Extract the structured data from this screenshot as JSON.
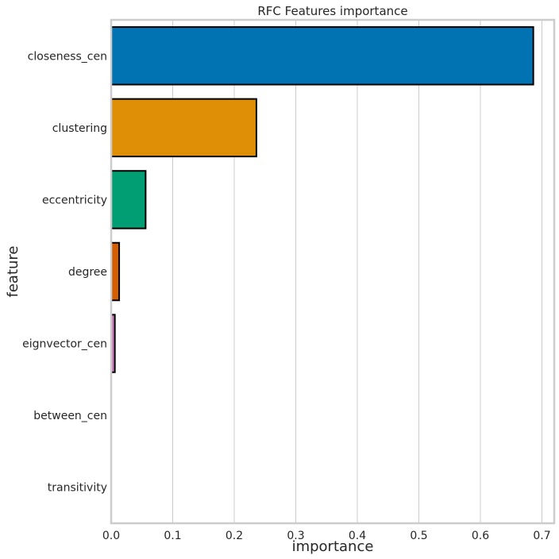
{
  "chart_data": {
    "type": "bar",
    "orientation": "horizontal",
    "title": "RFC Features importance",
    "xlabel": "importance",
    "ylabel": "feature",
    "xlim": [
      0,
      0.72
    ],
    "xticks": [
      0.0,
      0.1,
      0.2,
      0.3,
      0.4,
      0.5,
      0.6,
      0.7
    ],
    "xtick_labels": [
      "0.0",
      "0.1",
      "0.2",
      "0.3",
      "0.4",
      "0.5",
      "0.6",
      "0.7"
    ],
    "grid": "vertical",
    "categories": [
      "closeness_cen",
      "clustering",
      "eccentricity",
      "degree",
      "eignvector_cen",
      "between_cen",
      "transitivity"
    ],
    "values": [
      0.686,
      0.236,
      0.056,
      0.013,
      0.006,
      0.0,
      0.0
    ],
    "colors": [
      "#0173b2",
      "#de8f05",
      "#029e73",
      "#d55e00",
      "#cc78bc",
      "#ca9161",
      "#fbafe4"
    ]
  }
}
